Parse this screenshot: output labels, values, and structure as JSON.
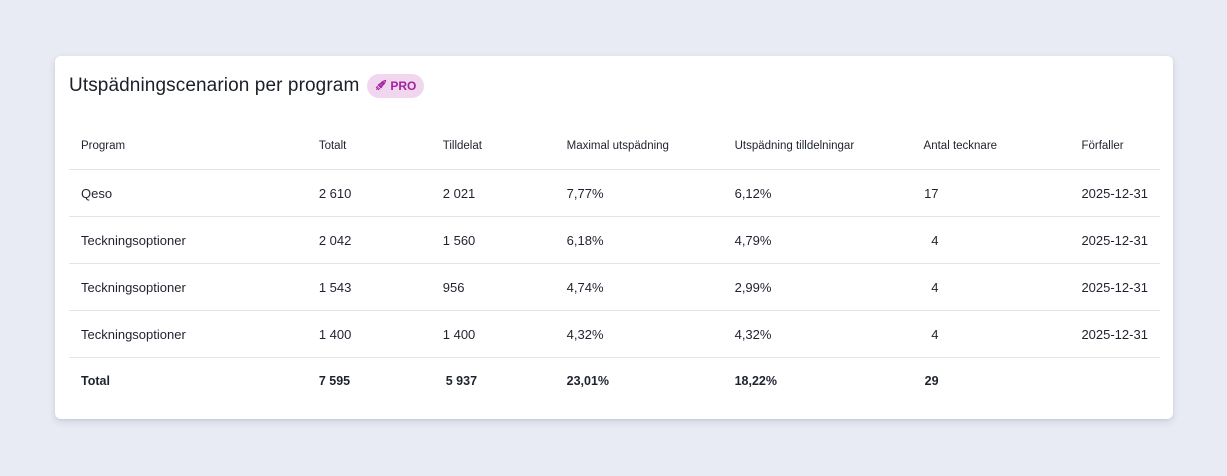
{
  "card": {
    "title": "Utspädningscenarion per program",
    "badge": "PRO",
    "badge_icon": "rocket-icon"
  },
  "table": {
    "headers": [
      "Program",
      "Totalt",
      "Tilldelat",
      "Maximal utspädning",
      "Utspädning tilldelningar",
      "Antal tecknare",
      "Förfaller"
    ],
    "rows": [
      [
        "Qeso",
        "2 610",
        "2 021",
        "7,77%",
        "6,12%",
        "17",
        "2025-12-31"
      ],
      [
        "Teckningsoptioner",
        "2 042",
        "1 560",
        "6,18%",
        "4,79%",
        "4",
        "2025-12-31"
      ],
      [
        "Teckningsoptioner",
        "1 543",
        "956",
        "4,74%",
        "2,99%",
        "4",
        "2025-12-31"
      ],
      [
        "Teckningsoptioner",
        "1 400",
        "1 400",
        "4,32%",
        "4,32%",
        "4",
        "2025-12-31"
      ]
    ],
    "total": [
      "Total",
      "7 595",
      "5 937",
      "23,01%",
      "18,22%",
      "29",
      ""
    ]
  },
  "colors": {
    "background": "#e8ebf4",
    "card": "#ffffff",
    "badge_bg": "#f1d6f0",
    "badge_text": "#a3229c"
  }
}
